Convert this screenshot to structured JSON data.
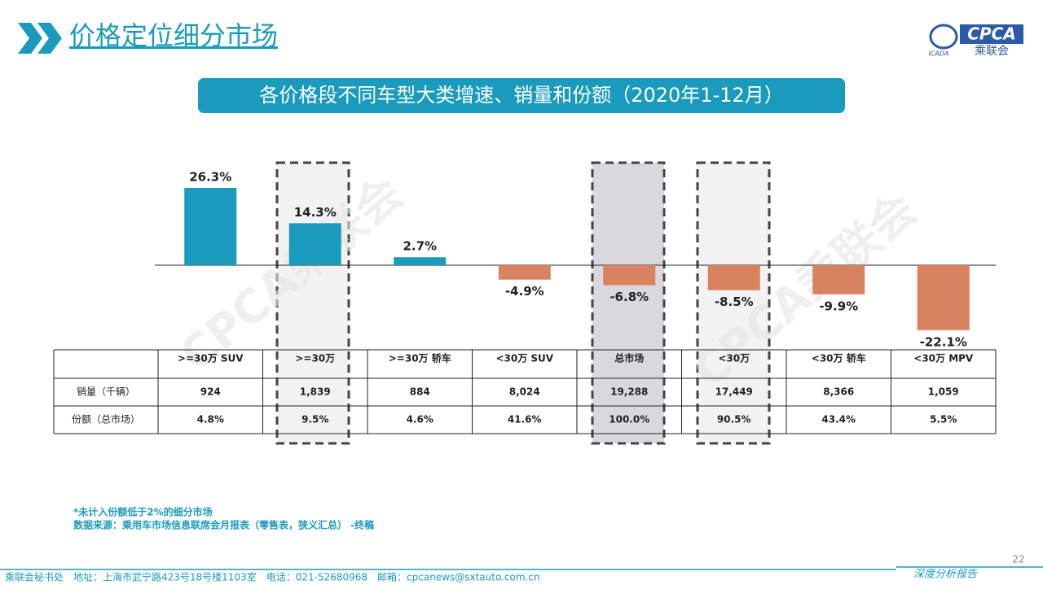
{
  "header": {
    "title": "价格定位细分市场",
    "subtitle": "各价格段不同车型大类增速、销量和份额（2020年1-12月）",
    "logo": {
      "brand": "CPCA",
      "name": "乘联会",
      "mark": "ICADA"
    }
  },
  "watermark": "CPCA乘联会",
  "chart_data": {
    "type": "bar",
    "categories": [
      ">=30万 SUV",
      ">=30万",
      ">=30万 轿车",
      "<30万 SUV",
      "总市场",
      "<30万",
      "<30万 轿车",
      "<30万 MPV"
    ],
    "values": [
      26.3,
      14.3,
      2.7,
      -4.9,
      -6.8,
      -8.5,
      -9.9,
      -22.1
    ],
    "value_labels": [
      "26.3%",
      "14.3%",
      "2.7%",
      "-4.9%",
      "-6.8%",
      "-8.5%",
      "-9.9%",
      "-22.1%"
    ],
    "positive_color": "#1a9bbd",
    "negative_color": "#d9825f"
  },
  "table": {
    "rows": [
      [
        "销量（千辆）",
        "924",
        "1,839",
        "884",
        "8,024",
        "19,288",
        "17,449",
        "8,366",
        "1,059"
      ],
      [
        "份额（总市场）",
        "4.8%",
        "9.5%",
        "4.6%",
        "41.6%",
        "100.0%",
        "90.5%",
        "43.4%",
        "5.5%"
      ]
    ]
  },
  "notes": [
    "*未计入份额低于2%的细分市场",
    "数据来源：乘用车市场信息联席会月报表（零售表，狭义汇总）  -终稿"
  ],
  "footer": {
    "contact": "乘联会秘书处　地址：上海市武宁路423号18号楼1103室　电话：021-52680968　邮箱：cpcanews@sxtauto.com.cn",
    "tag": "深度分析报告",
    "page": "22"
  }
}
